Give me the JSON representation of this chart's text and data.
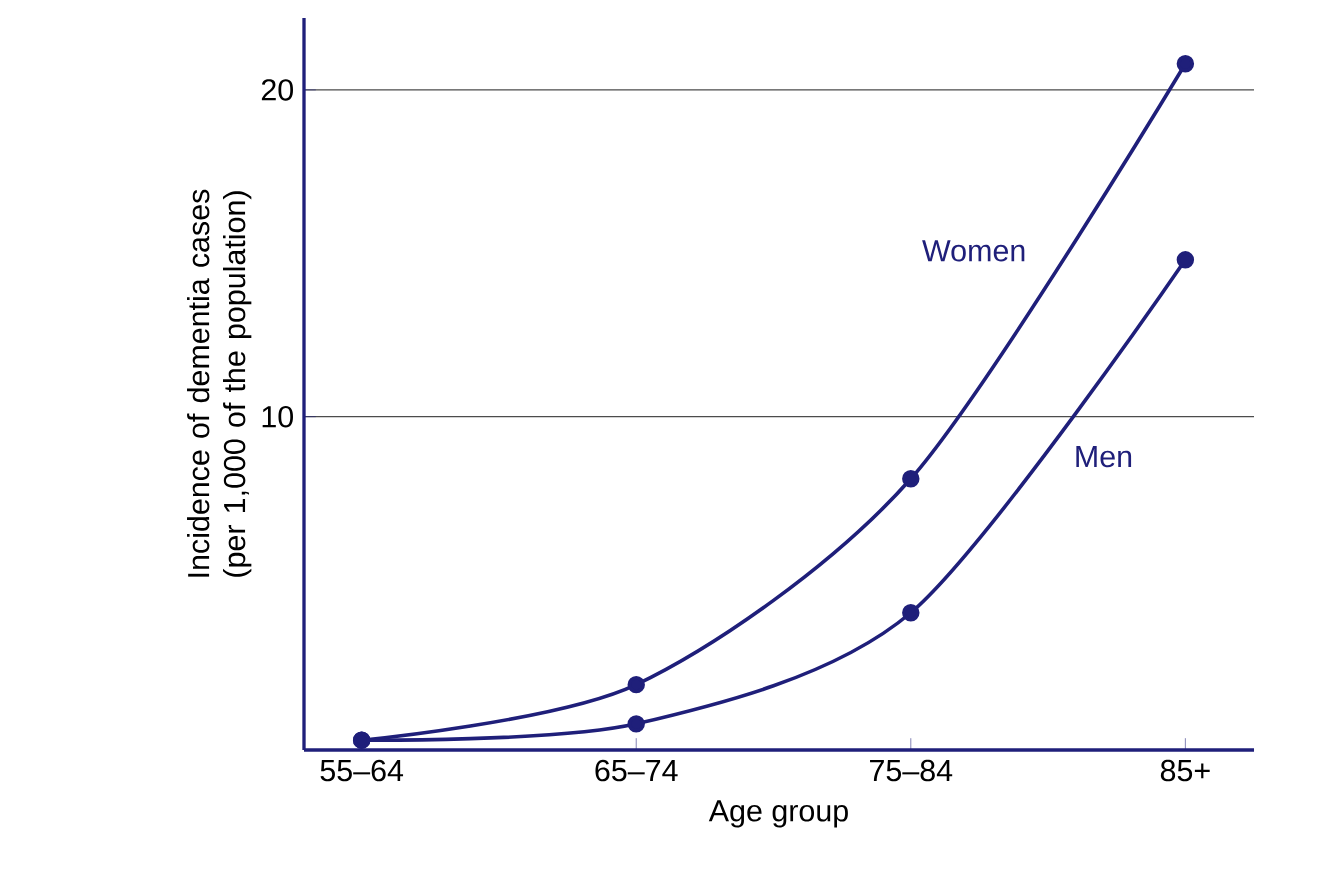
{
  "chart_data": {
    "type": "line",
    "xlabel": "Age group",
    "ylabel": "Incidence of dementia cases (per 1,000 of the population)",
    "categories": [
      "55–64",
      "65–74",
      "75–84",
      "85+"
    ],
    "series": [
      {
        "name": "Women",
        "color": "#1f1f7a",
        "values": [
          0.1,
          1.8,
          8.1,
          20.8
        ]
      },
      {
        "name": "Men",
        "color": "#1f1f7a",
        "values": [
          0.1,
          0.6,
          4.0,
          14.8
        ]
      }
    ],
    "ylim": [
      -0.2,
      22.2
    ],
    "yticks": [
      10,
      20
    ],
    "grid": "y",
    "legend": false,
    "marker": "circle",
    "line_style": "solid"
  }
}
